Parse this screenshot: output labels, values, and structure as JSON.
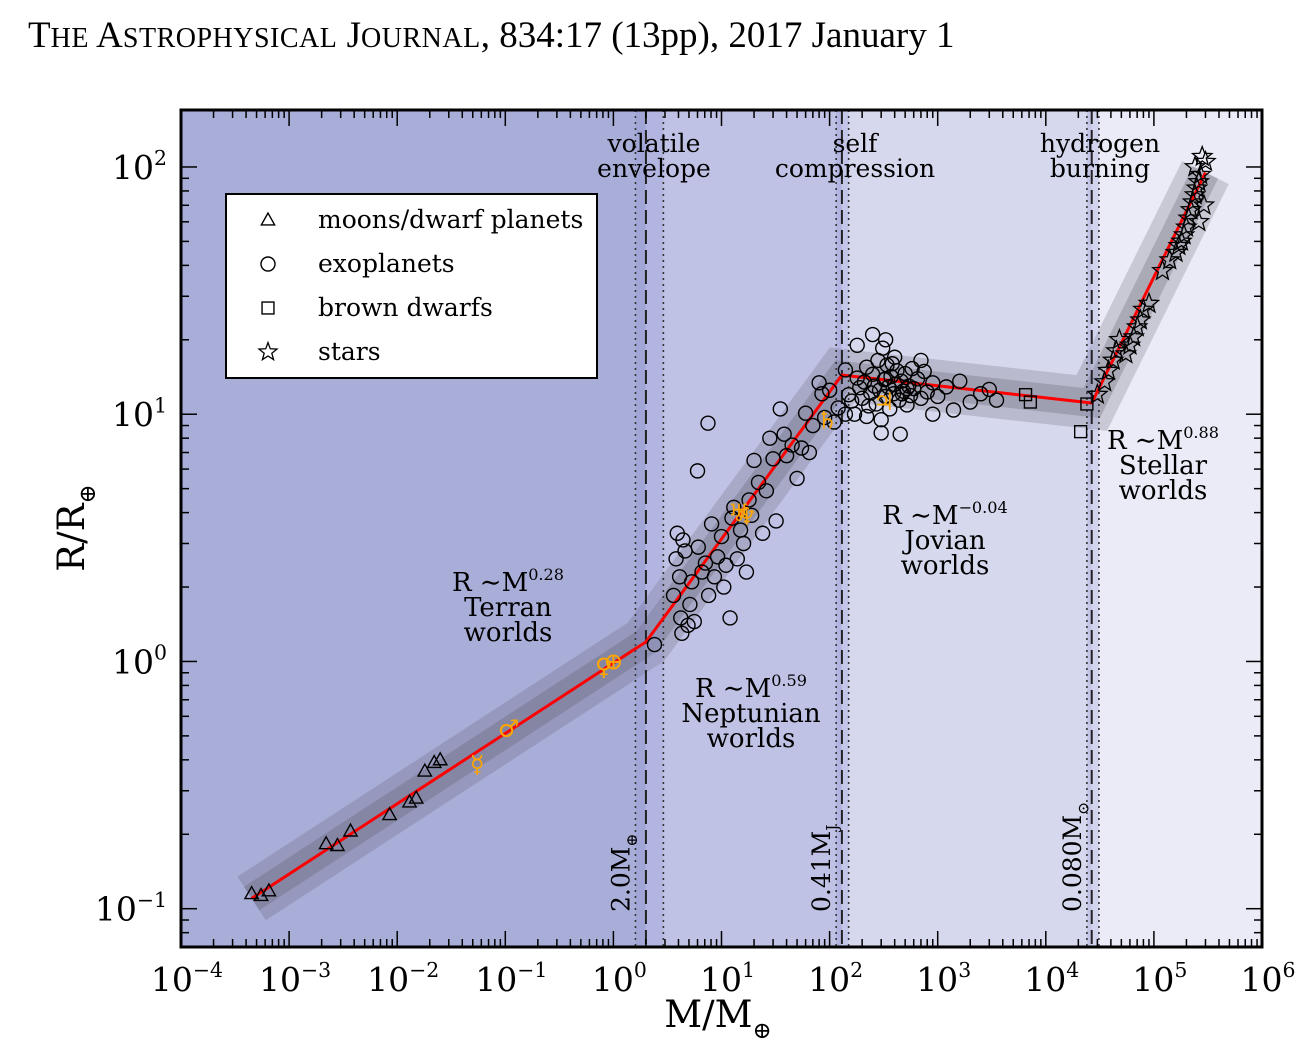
{
  "header": {
    "journal_T": "T",
    "journal_he": "HE",
    "journal_A": "A",
    "journal_strophysical": "STROPHYSICAL",
    "journal_J": "J",
    "journal_ournal": "OURNAL",
    "citation": ", 834:17 (13pp), 2017 January 1"
  },
  "chart_data": {
    "type": "scatter",
    "x_scale": "log",
    "y_scale": "log",
    "xlim": [
      0.0001,
      1000000
    ],
    "ylim": [
      0.07,
      170
    ],
    "xlabel_main": "M/M",
    "xlabel_sub": "⊕",
    "ylabel_main": "R/R",
    "ylabel_sub": "⊕",
    "x_ticks": [
      {
        "value": 0.0001,
        "base": "10",
        "exp": "−4"
      },
      {
        "value": 0.001,
        "base": "10",
        "exp": "−3"
      },
      {
        "value": 0.01,
        "base": "10",
        "exp": "−2"
      },
      {
        "value": 0.1,
        "base": "10",
        "exp": "−1"
      },
      {
        "value": 1,
        "base": "10",
        "exp": "0"
      },
      {
        "value": 10,
        "base": "10",
        "exp": "1"
      },
      {
        "value": 100,
        "base": "10",
        "exp": "2"
      },
      {
        "value": 1000,
        "base": "10",
        "exp": "3"
      },
      {
        "value": 10000,
        "base": "10",
        "exp": "4"
      },
      {
        "value": 100000,
        "base": "10",
        "exp": "5"
      },
      {
        "value": 1000000,
        "base": "10",
        "exp": "6"
      }
    ],
    "y_ticks": [
      {
        "value": 0.1,
        "base": "10",
        "exp": "−1"
      },
      {
        "value": 1,
        "base": "10",
        "exp": "0"
      },
      {
        "value": 10,
        "base": "10",
        "exp": "1"
      },
      {
        "value": 100,
        "base": "10",
        "exp": "2"
      }
    ],
    "regions": [
      {
        "x0": 0.0001,
        "x1": 2.0,
        "color": "#a9aed9"
      },
      {
        "x0": 2.0,
        "x1": 130,
        "color": "#bfc2e4"
      },
      {
        "x0": 130,
        "x1": 26600,
        "color": "#d6d8ee"
      },
      {
        "x0": 26600,
        "x1": 1000000,
        "color": "#eaebf6"
      }
    ],
    "transitions": [
      {
        "x": 2.0,
        "lo": 1.6,
        "hi": 2.9,
        "label_main": "2.0M",
        "label_sub": "⊕",
        "title": [
          "volatile",
          "envelope"
        ]
      },
      {
        "x": 130,
        "lo": 115,
        "hi": 150,
        "label_main": "0.41M",
        "label_sub": "J",
        "title": [
          "self",
          "compression"
        ]
      },
      {
        "x": 26600,
        "lo": 24000,
        "hi": 31000,
        "label_main": "0.080M",
        "label_sub": "⊙",
        "title": [
          "hydrogen",
          "burning"
        ]
      }
    ],
    "fit_line": [
      [
        0.00045,
        0.11
      ],
      [
        2.0,
        1.2
      ],
      [
        130,
        14.4
      ],
      [
        26600,
        11.1
      ],
      [
        300000,
        95
      ]
    ],
    "fit_color": "#ff0000",
    "regimes": [
      {
        "relation_main": "R ∼M",
        "exponent": "0.28",
        "name": "Terran",
        "suffix": "worlds"
      },
      {
        "relation_main": "R ∼M",
        "exponent": "0.59",
        "name": "Neptunian",
        "suffix": "worlds"
      },
      {
        "relation_main": "R ∼M",
        "exponent": "−0.04",
        "name": "Jovian",
        "suffix": "worlds"
      },
      {
        "relation_main": "R ∼M",
        "exponent": "0.88",
        "name": "Stellar",
        "suffix": "worlds"
      }
    ],
    "legend": {
      "placement": "upper-left",
      "entries": [
        {
          "marker": "triangle",
          "label": "moons/dwarf planets"
        },
        {
          "marker": "circle",
          "label": "exoplanets"
        },
        {
          "marker": "square",
          "label": "brown dwarfs"
        },
        {
          "marker": "star",
          "label": "stars"
        }
      ]
    },
    "series": [
      {
        "name": "moons/dwarf planets",
        "marker": "triangle",
        "points": [
          [
            0.00045,
            0.115
          ],
          [
            0.00055,
            0.113
          ],
          [
            0.00065,
            0.118
          ],
          [
            0.0022,
            0.183
          ],
          [
            0.0028,
            0.18
          ],
          [
            0.0037,
            0.206
          ],
          [
            0.0085,
            0.24
          ],
          [
            0.013,
            0.27
          ],
          [
            0.015,
            0.28
          ],
          [
            0.018,
            0.36
          ],
          [
            0.022,
            0.39
          ],
          [
            0.025,
            0.4
          ]
        ]
      },
      {
        "name": "exoplanets",
        "marker": "circle",
        "points": [
          [
            2.4,
            1.17
          ],
          [
            3.6,
            1.85
          ],
          [
            3.8,
            2.6
          ],
          [
            3.9,
            3.3
          ],
          [
            4.1,
            2.2
          ],
          [
            4.2,
            1.5
          ],
          [
            4.3,
            1.3
          ],
          [
            4.4,
            3.1
          ],
          [
            4.6,
            2.8
          ],
          [
            4.9,
            1.4
          ],
          [
            5.1,
            1.7
          ],
          [
            5.3,
            2.1
          ],
          [
            5.6,
            1.45
          ],
          [
            6.1,
            2.9
          ],
          [
            6.6,
            2.3
          ],
          [
            7.1,
            2.5
          ],
          [
            7.6,
            1.85
          ],
          [
            8.1,
            3.6
          ],
          [
            8.6,
            2.2
          ],
          [
            9.2,
            2.65
          ],
          [
            10,
            3.2
          ],
          [
            10.5,
            2.0
          ],
          [
            11,
            2.45
          ],
          [
            12,
            1.5
          ],
          [
            12.5,
            3.8
          ],
          [
            13,
            4.2
          ],
          [
            14,
            2.6
          ],
          [
            15,
            3.4
          ],
          [
            16,
            3.0
          ],
          [
            17,
            2.3
          ],
          [
            18,
            4.5
          ],
          [
            19,
            3.9
          ],
          [
            20,
            6.5
          ],
          [
            22,
            5.3
          ],
          [
            24,
            3.3
          ],
          [
            26,
            4.9
          ],
          [
            28,
            8.0
          ],
          [
            30,
            6.6
          ],
          [
            32,
            3.7
          ],
          [
            35,
            10.5
          ],
          [
            38,
            8.3
          ],
          [
            40,
            6.8
          ],
          [
            45,
            7.5
          ],
          [
            50,
            5.5
          ],
          [
            55,
            7.3
          ],
          [
            60,
            10.1
          ],
          [
            65,
            7.0
          ],
          [
            70,
            9.0
          ],
          [
            80,
            13.4
          ],
          [
            85,
            12.1
          ],
          [
            90,
            9.7
          ],
          [
            100,
            12.5
          ],
          [
            110,
            9.3
          ],
          [
            120,
            10.6
          ],
          [
            6,
            5.9
          ],
          [
            7.5,
            9.2
          ],
          [
            140,
            15.1
          ],
          [
            150,
            12.0
          ],
          [
            160,
            11.3
          ],
          [
            170,
            10.0
          ],
          [
            180,
            14.0
          ],
          [
            190,
            12.8
          ],
          [
            200,
            11.6
          ],
          [
            210,
            13.5
          ],
          [
            220,
            15.5
          ],
          [
            230,
            10.8
          ],
          [
            240,
            12.2
          ],
          [
            250,
            14.5
          ],
          [
            260,
            13.0
          ],
          [
            270,
            11.0
          ],
          [
            280,
            16.5
          ],
          [
            290,
            12.5
          ],
          [
            300,
            9.5
          ],
          [
            310,
            18.5
          ],
          [
            320,
            13.8
          ],
          [
            330,
            11.8
          ],
          [
            340,
            15.8
          ],
          [
            350,
            12.9
          ],
          [
            360,
            10.5
          ],
          [
            370,
            14.2
          ],
          [
            380,
            16.0
          ],
          [
            390,
            12.1
          ],
          [
            400,
            13.2
          ],
          [
            420,
            15.0
          ],
          [
            440,
            11.4
          ],
          [
            460,
            13.6
          ],
          [
            480,
            12.4
          ],
          [
            500,
            14.6
          ],
          [
            520,
            10.9
          ],
          [
            540,
            13.0
          ],
          [
            560,
            11.9
          ],
          [
            580,
            15.3
          ],
          [
            600,
            12.7
          ],
          [
            650,
            13.9
          ],
          [
            700,
            11.6
          ],
          [
            750,
            14.9
          ],
          [
            800,
            12.3
          ],
          [
            900,
            13.4
          ],
          [
            1000,
            11.8
          ],
          [
            1200,
            12.9
          ],
          [
            1400,
            10.4
          ],
          [
            1600,
            13.6
          ],
          [
            2000,
            11.2
          ],
          [
            2500,
            12.1
          ],
          [
            3000,
            12.6
          ],
          [
            3500,
            11.4
          ],
          [
            250,
            21.0
          ],
          [
            330,
            20.0
          ],
          [
            180,
            19.0
          ],
          [
            400,
            17.0
          ],
          [
            300,
            8.4
          ],
          [
            450,
            8.3
          ],
          [
            220,
            9.8
          ],
          [
            140,
            10.0
          ],
          [
            700,
            16.5
          ],
          [
            900,
            10.0
          ],
          [
            520,
            12.7
          ],
          [
            470,
            12.1
          ],
          [
            330,
            13.9
          ]
        ]
      },
      {
        "name": "brown dwarfs",
        "marker": "square",
        "points": [
          [
            6500,
            12.0
          ],
          [
            7200,
            11.2
          ],
          [
            21000,
            8.5
          ],
          [
            24000,
            11.0
          ]
        ]
      },
      {
        "name": "stars",
        "marker": "star",
        "points": [
          [
            30000,
            12.0
          ],
          [
            35000,
            13.5
          ],
          [
            38000,
            15.0
          ],
          [
            42000,
            16.5
          ],
          [
            45000,
            18.0
          ],
          [
            48000,
            20.0
          ],
          [
            55000,
            17.5
          ],
          [
            60000,
            19.0
          ],
          [
            65000,
            20.5
          ],
          [
            70000,
            22.5
          ],
          [
            75000,
            24.0
          ],
          [
            80000,
            26.5
          ],
          [
            90000,
            28.0
          ],
          [
            120000,
            38.0
          ],
          [
            140000,
            42.0
          ],
          [
            160000,
            45.0
          ],
          [
            170000,
            48.0
          ],
          [
            180000,
            50.0
          ],
          [
            190000,
            53.0
          ],
          [
            200000,
            57.0
          ],
          [
            210000,
            62.0
          ],
          [
            220000,
            67.0
          ],
          [
            230000,
            72.0
          ],
          [
            240000,
            77.0
          ],
          [
            250000,
            82.0
          ],
          [
            260000,
            87.0
          ],
          [
            270000,
            93.0
          ],
          [
            280000,
            110.0
          ],
          [
            300000,
            105.0
          ],
          [
            240000,
            100.0
          ],
          [
            290000,
            70.0
          ],
          [
            260000,
            60.0
          ]
        ]
      },
      {
        "name": "solar-system-symbols",
        "marker": "glyph",
        "points": [
          [
            0.055,
            0.383,
            "☿"
          ],
          [
            0.107,
            0.532,
            "♂"
          ],
          [
            0.815,
            0.95,
            "♀"
          ],
          [
            1.0,
            1.0,
            "⊕"
          ],
          [
            14.5,
            3.98,
            "♅"
          ],
          [
            17.1,
            3.86,
            "♆"
          ],
          [
            95,
            9.45,
            "♄"
          ],
          [
            318,
            11.2,
            "♃"
          ]
        ]
      }
    ],
    "series_color": "#000000",
    "solar_color": "#ffa500"
  }
}
